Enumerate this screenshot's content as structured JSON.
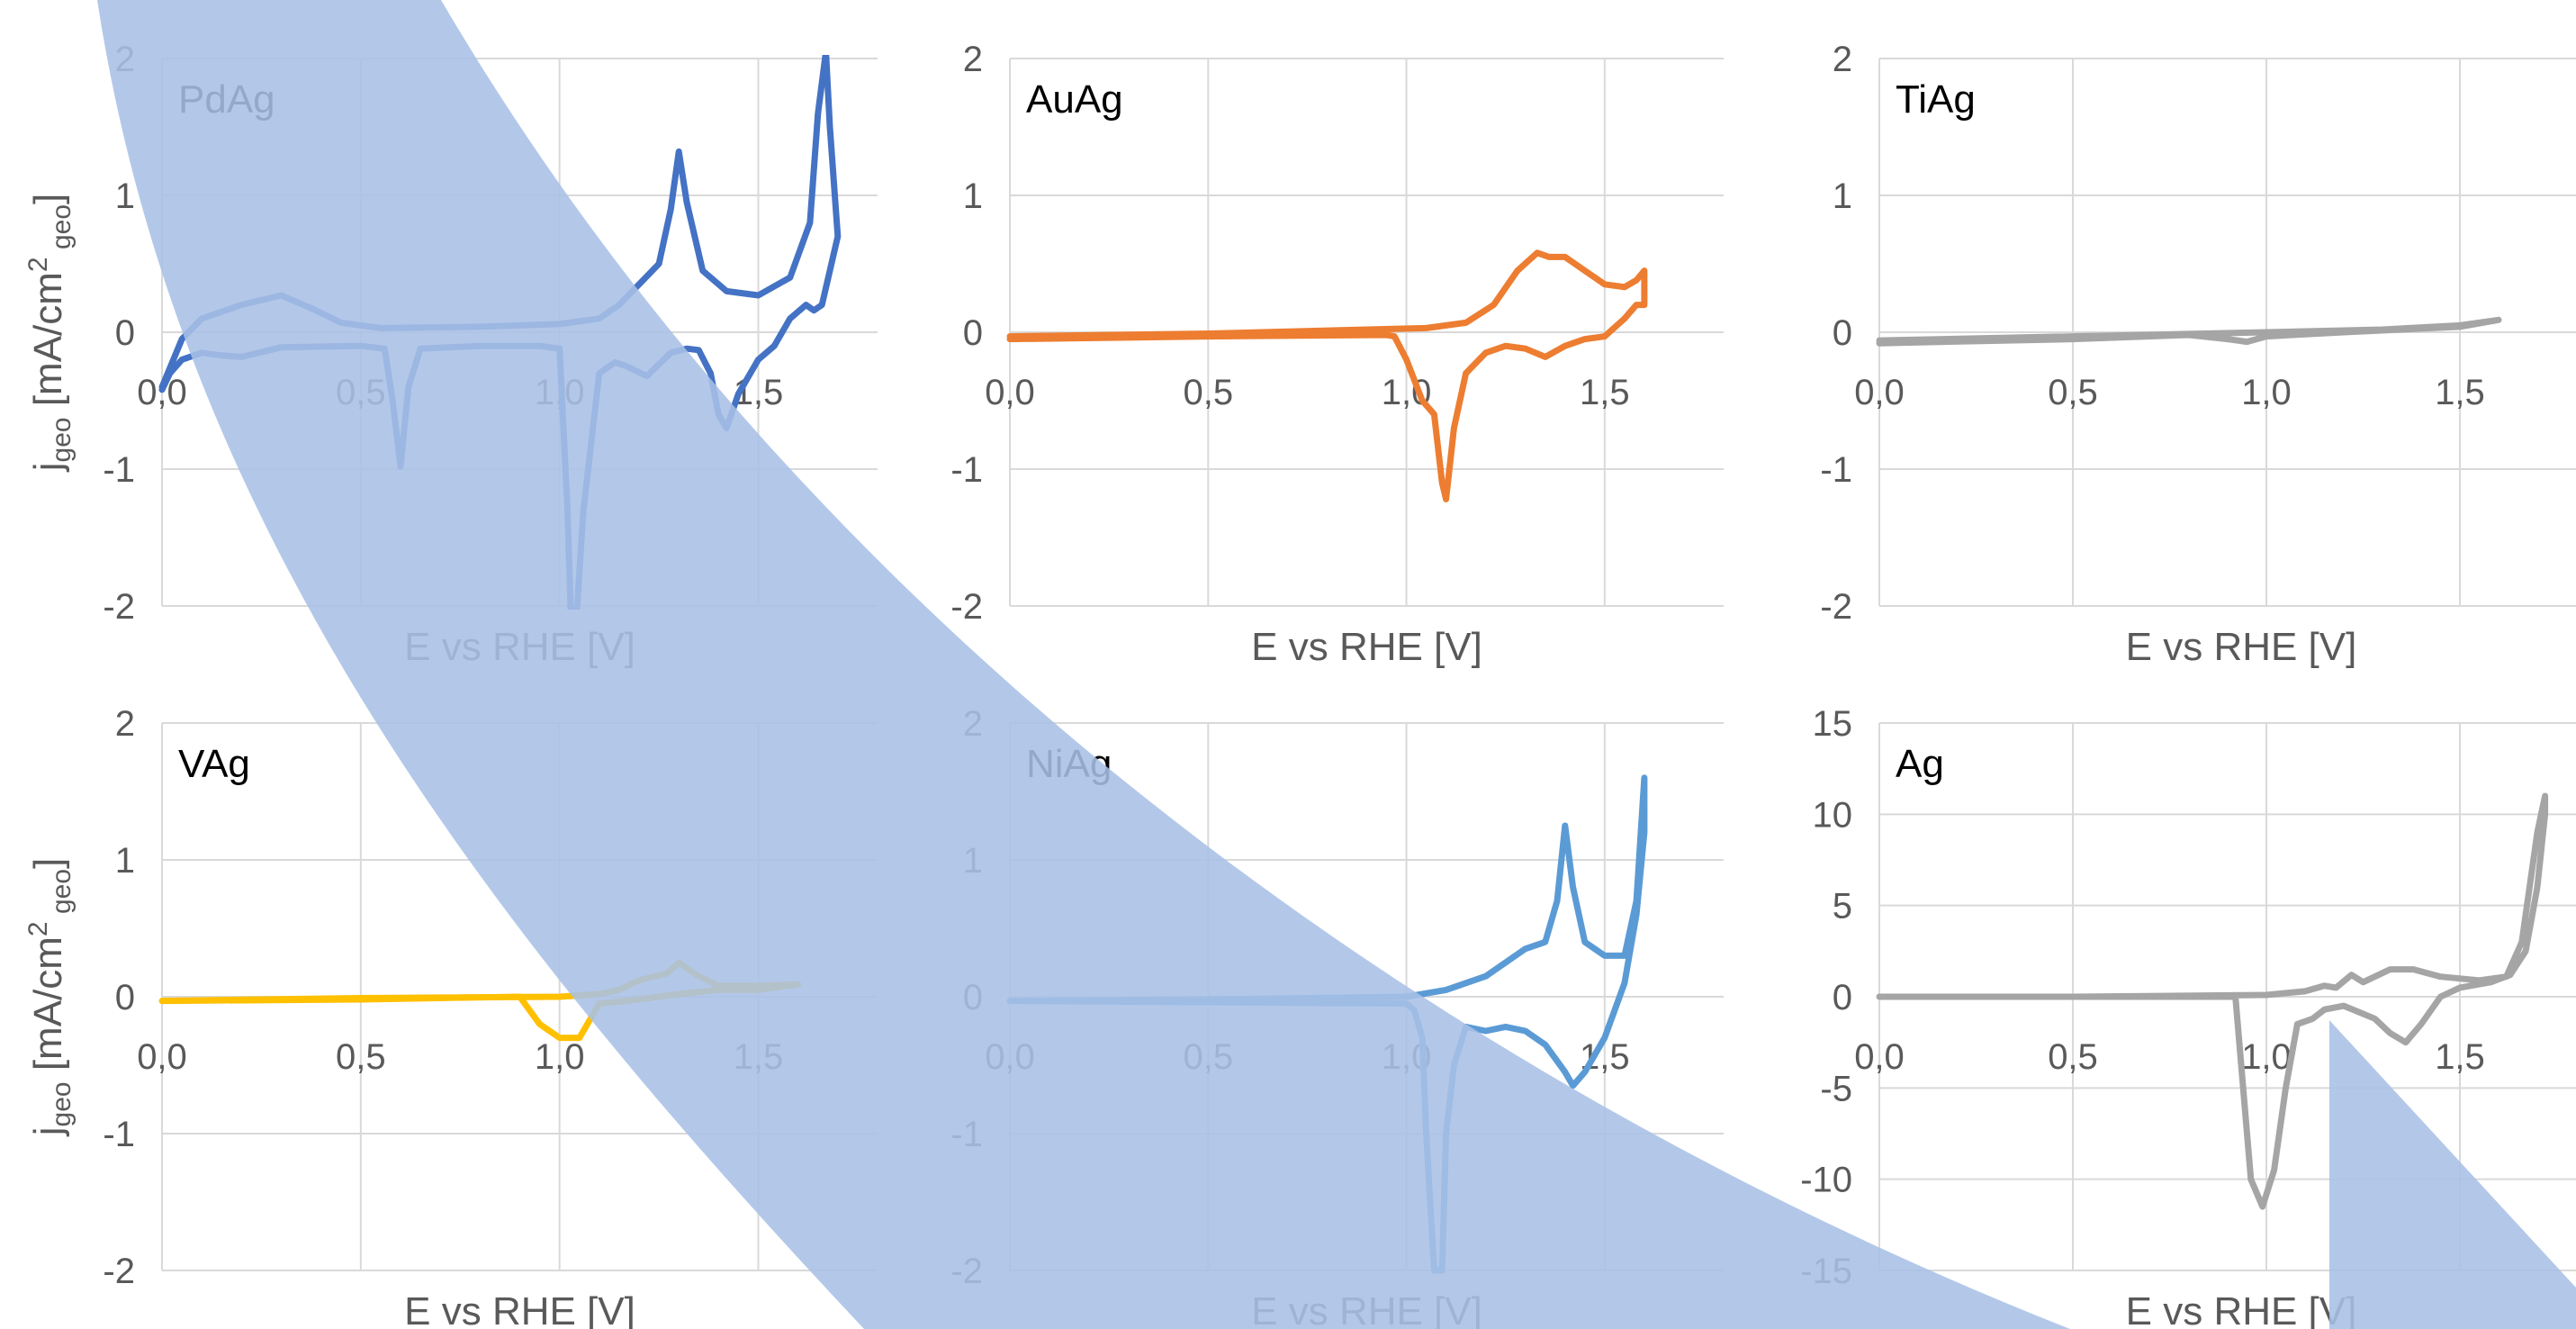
{
  "chart_data": [
    {
      "type": "line",
      "label": "PdAg",
      "xlabel": "E vs RHE [V]",
      "ylabel": "jgeo [mA/cm2 geo]",
      "xlim": [
        0,
        1.8
      ],
      "ylim": [
        -2,
        2
      ],
      "x_ticks": [
        "0,0",
        "0,5",
        "1,0",
        "1,5"
      ],
      "y_ticks": [
        "2",
        "1",
        "0",
        "-1",
        "-2"
      ],
      "color": "#4472c4",
      "series": [
        {
          "x": [
            0.0,
            0.05,
            0.1,
            0.2,
            0.3,
            0.38,
            0.45,
            0.55,
            0.8,
            1.0,
            1.1,
            1.15,
            1.2,
            1.25,
            1.28,
            1.3,
            1.32,
            1.36,
            1.42,
            1.5,
            1.58,
            1.63,
            1.65,
            1.67,
            1.68,
            1.7,
            1.68,
            1.66,
            1.64,
            1.62,
            1.58,
            1.54,
            1.5,
            1.45,
            1.42,
            1.4,
            1.38,
            1.35,
            1.32,
            1.28,
            1.22,
            1.17,
            1.14,
            1.1,
            1.06,
            1.04,
            1.03,
            1.02,
            1.0,
            0.95,
            0.8,
            0.65,
            0.62,
            0.6,
            0.58,
            0.56,
            0.5,
            0.3,
            0.2,
            0.15,
            0.1,
            0.05,
            0.02,
            0.0
          ],
          "y": [
            -0.4,
            -0.05,
            0.1,
            0.2,
            0.27,
            0.17,
            0.07,
            0.03,
            0.04,
            0.06,
            0.1,
            0.2,
            0.35,
            0.5,
            0.9,
            1.32,
            0.95,
            0.45,
            0.3,
            0.27,
            0.4,
            0.8,
            1.6,
            2.05,
            1.5,
            0.7,
            0.45,
            0.2,
            0.16,
            0.2,
            0.1,
            -0.1,
            -0.2,
            -0.45,
            -0.7,
            -0.6,
            -0.3,
            -0.13,
            -0.12,
            -0.15,
            -0.32,
            -0.25,
            -0.22,
            -0.3,
            -1.3,
            -2.2,
            -2.2,
            -1.3,
            -0.12,
            -0.1,
            -0.1,
            -0.12,
            -0.4,
            -0.98,
            -0.5,
            -0.12,
            -0.1,
            -0.11,
            -0.18,
            -0.17,
            -0.15,
            -0.2,
            -0.3,
            -0.42
          ]
        }
      ]
    },
    {
      "type": "line",
      "label": "AuAg",
      "xlabel": "E vs RHE [V]",
      "ylabel": "",
      "xlim": [
        0,
        1.8
      ],
      "ylim": [
        -2,
        2
      ],
      "x_ticks": [
        "0,0",
        "0,5",
        "1,0",
        "1,5"
      ],
      "y_ticks": [
        "2",
        "1",
        "0",
        "-1",
        "-2"
      ],
      "color": "#ed7d31",
      "series": [
        {
          "x": [
            0.0,
            0.5,
            0.9,
            1.05,
            1.15,
            1.22,
            1.28,
            1.33,
            1.36,
            1.4,
            1.45,
            1.5,
            1.55,
            1.58,
            1.6,
            1.6,
            1.58,
            1.55,
            1.5,
            1.45,
            1.4,
            1.35,
            1.3,
            1.25,
            1.2,
            1.15,
            1.12,
            1.1,
            1.09,
            1.07,
            1.04,
            1.0,
            0.97,
            0.95,
            0.5,
            0.0
          ],
          "y": [
            -0.03,
            -0.01,
            0.02,
            0.03,
            0.07,
            0.2,
            0.45,
            0.58,
            0.55,
            0.55,
            0.45,
            0.35,
            0.33,
            0.38,
            0.45,
            0.2,
            0.2,
            0.1,
            -0.03,
            -0.05,
            -0.1,
            -0.18,
            -0.12,
            -0.1,
            -0.15,
            -0.3,
            -0.7,
            -1.22,
            -1.1,
            -0.6,
            -0.5,
            -0.2,
            -0.03,
            -0.02,
            -0.03,
            -0.05
          ]
        }
      ]
    },
    {
      "type": "line",
      "label": "TiAg",
      "xlabel": "E vs RHE [V]",
      "ylabel": "",
      "xlim": [
        0,
        1.8
      ],
      "ylim": [
        -2,
        2
      ],
      "x_ticks": [
        "0,0",
        "0,5",
        "1,0",
        "1,5"
      ],
      "y_ticks": [
        "2",
        "1",
        "0",
        "-1",
        "-2"
      ],
      "color": "#a5a5a5",
      "series": [
        {
          "x": [
            0.0,
            0.5,
            1.0,
            1.3,
            1.5,
            1.6,
            1.5,
            1.2,
            1.0,
            0.95,
            0.9,
            0.8,
            0.5,
            0.0
          ],
          "y": [
            -0.06,
            -0.03,
            0.0,
            0.02,
            0.05,
            0.09,
            0.04,
            0.0,
            -0.03,
            -0.07,
            -0.05,
            -0.02,
            -0.05,
            -0.08
          ]
        }
      ]
    },
    {
      "type": "line",
      "label": "VAg",
      "xlabel": "E vs RHE [V]",
      "ylabel": "jgeo [mA/cm2 geo]",
      "xlim": [
        0,
        1.8
      ],
      "ylim": [
        -2,
        2
      ],
      "x_ticks": [
        "0,0",
        "0,5",
        "1,0",
        "1,5"
      ],
      "y_ticks": [
        "2",
        "1",
        "0",
        "-1",
        "-2"
      ],
      "color": "#ffc000",
      "series": [
        {
          "x": [
            0.0,
            0.5,
            1.0,
            1.1,
            1.15,
            1.2,
            1.24,
            1.27,
            1.3,
            1.35,
            1.4,
            1.5,
            1.6,
            1.5,
            1.4,
            1.3,
            1.2,
            1.1,
            1.07,
            1.05,
            1.0,
            0.95,
            0.9,
            0.5,
            0.0
          ],
          "y": [
            -0.03,
            -0.01,
            0.0,
            0.02,
            0.05,
            0.12,
            0.15,
            0.17,
            0.25,
            0.15,
            0.08,
            0.08,
            0.09,
            0.05,
            0.05,
            0.02,
            -0.02,
            -0.05,
            -0.2,
            -0.3,
            -0.3,
            -0.2,
            0.0,
            -0.02,
            -0.03
          ]
        }
      ]
    },
    {
      "type": "line",
      "label": "NiAg",
      "xlabel": "E vs RHE [V]",
      "ylabel": "",
      "xlim": [
        0,
        1.8
      ],
      "ylim": [
        -2,
        2
      ],
      "x_ticks": [
        "0,0",
        "0,5",
        "1,0",
        "1,5"
      ],
      "y_ticks": [
        "2",
        "1",
        "0",
        "-1",
        "-2"
      ],
      "color": "#5b9bd5",
      "series": [
        {
          "x": [
            0.0,
            0.5,
            1.0,
            1.1,
            1.2,
            1.25,
            1.3,
            1.35,
            1.38,
            1.4,
            1.42,
            1.45,
            1.5,
            1.55,
            1.58,
            1.6,
            1.6,
            1.58,
            1.55,
            1.5,
            1.45,
            1.42,
            1.4,
            1.35,
            1.3,
            1.25,
            1.2,
            1.15,
            1.12,
            1.1,
            1.09,
            1.07,
            1.05,
            1.04,
            1.02,
            1.0,
            0.5,
            0.0
          ],
          "y": [
            -0.03,
            -0.02,
            0.0,
            0.05,
            0.15,
            0.25,
            0.35,
            0.4,
            0.7,
            1.25,
            0.8,
            0.4,
            0.3,
            0.3,
            0.7,
            1.6,
            1.2,
            0.6,
            0.1,
            -0.3,
            -0.55,
            -0.65,
            -0.55,
            -0.35,
            -0.25,
            -0.22,
            -0.25,
            -0.22,
            -0.5,
            -1.0,
            -2.0,
            -2.0,
            -1.0,
            -0.3,
            -0.1,
            -0.05,
            -0.04,
            -0.03
          ]
        }
      ]
    },
    {
      "type": "line",
      "label": "Ag",
      "xlabel": "E vs RHE [V]",
      "ylabel": "",
      "xlim": [
        0,
        1.8
      ],
      "ylim": [
        -15,
        15
      ],
      "x_ticks": [
        "0,0",
        "0,5",
        "1,0",
        "1,5"
      ],
      "y_ticks": [
        "15",
        "10",
        "5",
        "0",
        "-5",
        "-10",
        "-15"
      ],
      "y_tick_color": "#ff0000",
      "color": "#a5a5a5",
      "series": [
        {
          "x": [
            0.0,
            0.5,
            1.0,
            1.1,
            1.15,
            1.18,
            1.22,
            1.25,
            1.28,
            1.32,
            1.38,
            1.45,
            1.55,
            1.62,
            1.66,
            1.7,
            1.72,
            1.72,
            1.7,
            1.67,
            1.63,
            1.58,
            1.5,
            1.45,
            1.4,
            1.36,
            1.32,
            1.28,
            1.2,
            1.15,
            1.12,
            1.08,
            1.05,
            1.02,
            0.99,
            0.96,
            0.94,
            0.92,
            0.5,
            0.0
          ],
          "y": [
            0.0,
            0.0,
            0.1,
            0.3,
            0.6,
            0.5,
            1.2,
            0.8,
            1.1,
            1.5,
            1.5,
            1.1,
            0.9,
            1.1,
            3.0,
            9.0,
            11.0,
            10.0,
            6.0,
            2.5,
            1.2,
            0.8,
            0.5,
            0.0,
            -1.5,
            -2.5,
            -2.0,
            -1.2,
            -0.5,
            -0.7,
            -1.2,
            -1.5,
            -5.0,
            -9.5,
            -11.5,
            -10.0,
            -5.0,
            0.0,
            0.0,
            0.0
          ]
        }
      ]
    }
  ]
}
